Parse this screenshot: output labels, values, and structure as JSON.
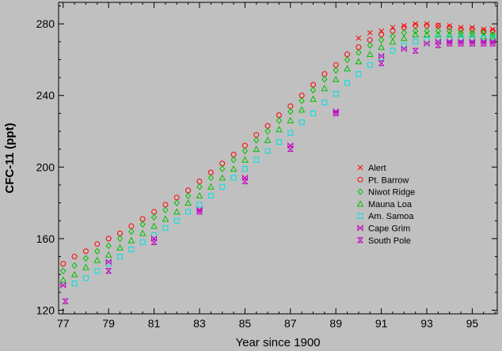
{
  "chart_data": {
    "type": "scatter",
    "title": "",
    "xlabel": "Year since 1900",
    "ylabel": "CFC-11 (ppt)",
    "xlim": [
      76.8,
      96.1
    ],
    "ylim": [
      118,
      292
    ],
    "x_ticks": [
      77,
      79,
      81,
      83,
      85,
      87,
      89,
      91,
      93,
      95
    ],
    "x_tick_labels": [
      "77",
      "79",
      "81",
      "83",
      "85",
      "87",
      "89",
      "91",
      "93",
      "95"
    ],
    "y_ticks": [
      120,
      160,
      200,
      240,
      280
    ],
    "y_tick_labels": [
      "120",
      "160",
      "200",
      "240",
      "280"
    ],
    "grid": false,
    "legend_position": "center-right",
    "series": [
      {
        "name": "Alert",
        "marker": "x",
        "color": "#ff0000",
        "x": [
          90.0,
          90.5,
          91.0,
          91.5,
          92.0,
          92.5,
          93.0,
          93.5,
          94.0,
          94.5,
          95.0,
          95.5,
          95.9
        ],
        "y": [
          272,
          275,
          276,
          278,
          279,
          280,
          280,
          279,
          279,
          278,
          278,
          277,
          277
        ]
      },
      {
        "name": "Pt. Barrow",
        "marker": "circle",
        "color": "#ff0000",
        "x": [
          77.0,
          77.5,
          78.0,
          78.5,
          79.0,
          79.5,
          80.0,
          80.5,
          81.0,
          81.5,
          82.0,
          82.5,
          83.0,
          83.5,
          84.0,
          84.5,
          85.0,
          85.5,
          86.0,
          86.5,
          87.0,
          87.5,
          88.0,
          88.5,
          89.0,
          89.5,
          90.0,
          90.5,
          91.0,
          91.5,
          92.0,
          92.5,
          93.0,
          93.5,
          94.0,
          94.5,
          95.0,
          95.5,
          95.9
        ],
        "y": [
          146,
          150,
          153,
          157,
          160,
          163,
          167,
          171,
          175,
          179,
          183,
          187,
          192,
          197,
          202,
          207,
          212,
          218,
          223,
          229,
          234,
          240,
          246,
          252,
          257,
          263,
          267,
          271,
          274,
          276,
          278,
          279,
          279,
          279,
          278,
          277,
          277,
          276,
          276
        ]
      },
      {
        "name": "Niwot Ridge",
        "marker": "diamond",
        "color": "#00c000",
        "x": [
          77.0,
          77.5,
          78.0,
          78.5,
          79.0,
          79.5,
          80.0,
          80.5,
          81.0,
          81.5,
          82.0,
          82.5,
          83.0,
          83.5,
          84.0,
          84.5,
          85.0,
          85.5,
          86.0,
          86.5,
          87.0,
          87.5,
          88.0,
          88.5,
          89.0,
          89.5,
          90.0,
          90.5,
          91.0,
          91.5,
          92.0,
          92.5,
          93.0,
          93.5,
          94.0,
          94.5,
          95.0,
          95.5,
          95.9
        ],
        "y": [
          142,
          145,
          149,
          153,
          156,
          160,
          164,
          168,
          172,
          176,
          180,
          184,
          189,
          194,
          199,
          204,
          209,
          215,
          220,
          226,
          231,
          237,
          243,
          249,
          254,
          260,
          264,
          268,
          271,
          273,
          275,
          276,
          276,
          276,
          276,
          275,
          275,
          275,
          274
        ]
      },
      {
        "name": "Mauna Loa",
        "marker": "triangle",
        "color": "#00c000",
        "x": [
          77.0,
          77.5,
          78.0,
          78.5,
          79.0,
          79.5,
          80.0,
          80.5,
          81.0,
          81.5,
          82.0,
          82.5,
          83.0,
          83.5,
          84.0,
          84.5,
          85.0,
          85.5,
          86.0,
          86.5,
          87.0,
          87.5,
          88.0,
          88.5,
          89.0,
          89.5,
          90.0,
          90.5,
          91.0,
          91.5,
          92.0,
          92.5,
          93.0,
          93.5,
          94.0,
          94.5,
          95.0,
          95.5,
          95.9
        ],
        "y": [
          137,
          140,
          144,
          148,
          151,
          155,
          159,
          163,
          167,
          171,
          175,
          180,
          184,
          189,
          194,
          199,
          204,
          210,
          215,
          221,
          226,
          232,
          238,
          244,
          249,
          255,
          259,
          263,
          267,
          270,
          272,
          274,
          274,
          274,
          274,
          274,
          274,
          273,
          273
        ]
      },
      {
        "name": "Am. Samoa",
        "marker": "square",
        "color": "#00e0e0",
        "x": [
          77.5,
          78.0,
          78.5,
          79.0,
          79.5,
          80.0,
          80.5,
          81.0,
          81.5,
          82.0,
          82.5,
          83.0,
          83.5,
          84.0,
          84.5,
          85.0,
          85.5,
          86.0,
          86.5,
          87.0,
          87.5,
          88.0,
          88.5,
          89.0,
          89.5,
          90.0,
          90.5,
          91.0,
          91.5,
          92.0,
          92.5,
          93.0,
          93.5,
          94.0,
          94.5,
          95.0,
          95.5,
          95.9
        ],
        "y": [
          135,
          138,
          142,
          146,
          150,
          154,
          158,
          162,
          166,
          170,
          175,
          179,
          184,
          189,
          194,
          199,
          204,
          209,
          214,
          219,
          225,
          230,
          236,
          241,
          247,
          252,
          257,
          261,
          265,
          268,
          270,
          271,
          272,
          272,
          272,
          272,
          272,
          272
        ]
      },
      {
        "name": "Cape Grim",
        "marker": "bowtie",
        "color": "#c000c0",
        "x": [
          77.0,
          79.0,
          81.0,
          83.0,
          85.0,
          87.0,
          89.0,
          91.0,
          92.0,
          93.0,
          93.5,
          94.0,
          94.5,
          95.0,
          95.5,
          95.9
        ],
        "y": [
          134,
          147,
          160,
          176,
          194,
          212,
          231,
          262,
          266,
          269,
          270,
          270,
          270,
          270,
          270,
          270
        ]
      },
      {
        "name": "South Pole",
        "marker": "hourglass",
        "color": "#c000c0",
        "x": [
          77.1,
          79.0,
          81.0,
          83.0,
          85.0,
          87.0,
          89.0,
          91.0,
          92.5,
          93.5,
          94.0,
          94.5,
          95.0,
          95.5,
          95.9
        ],
        "y": [
          125,
          142,
          158,
          175,
          192,
          210,
          230,
          258,
          265,
          268,
          269,
          269,
          269,
          269,
          269
        ]
      }
    ]
  }
}
